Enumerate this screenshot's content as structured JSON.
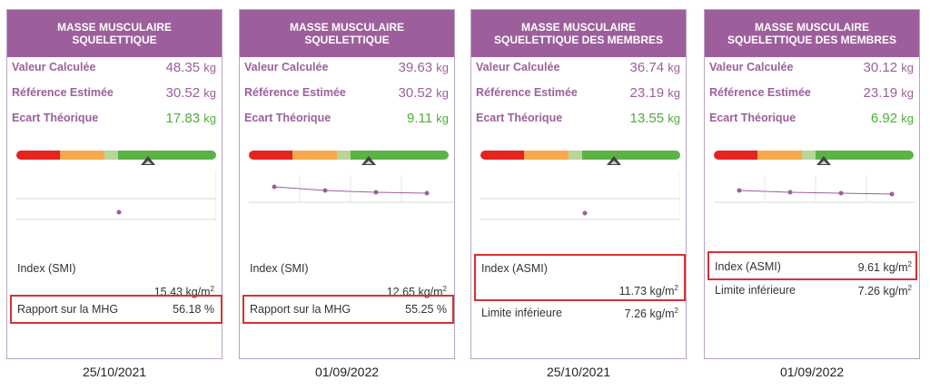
{
  "colors": {
    "header": "#9d5e9c",
    "label": "#9d5e9c",
    "positive": "#4cae3a",
    "gauge": [
      "#e52420",
      "#f6a94c",
      "#b8d59a",
      "#5cb246"
    ],
    "highlight_box": "#d93030"
  },
  "cards": [
    {
      "title_line1": "MASSE MUSCULAIRE",
      "title_line2": "SQUELETTIQUE",
      "valeur_label": "Valeur Calculée",
      "valeur_value": "48.35",
      "valeur_unit": "kg",
      "reference_label": "Référence Estimée",
      "reference_value": "30.52",
      "reference_unit": "kg",
      "ecart_label": "Ecart Théorique",
      "ecart_value": "17.83",
      "ecart_unit": "kg",
      "gauge_marker_fraction": 0.66,
      "index_label": "Index (SMI)",
      "index_value": "15.43 kg/m",
      "index_exp": "2",
      "ratio_label": "Rapport sur la MHG",
      "ratio_value": "56.18 %",
      "date": "25/10/2021"
    },
    {
      "title_line1": "MASSE MUSCULAIRE",
      "title_line2": "SQUELETTIQUE",
      "valeur_label": "Valeur Calculée",
      "valeur_value": "39.63",
      "valeur_unit": "kg",
      "reference_label": "Référence Estimée",
      "reference_value": "30.52",
      "reference_unit": "kg",
      "ecart_label": "Ecart Théorique",
      "ecart_value": "9.11",
      "ecart_unit": "kg",
      "gauge_marker_fraction": 0.6,
      "index_label": "Index (SMI)",
      "index_value": "12.65 kg/m",
      "index_exp": "2",
      "ratio_label": "Rapport sur la MHG",
      "ratio_value": "55.25 %",
      "date": "01/09/2022"
    },
    {
      "title_line1": "MASSE MUSCULAIRE",
      "title_line2": "SQUELETTIQUE DES MEMBRES",
      "valeur_label": "Valeur Calculée",
      "valeur_value": "36.74",
      "valeur_unit": "kg",
      "reference_label": "Référence Estimée",
      "reference_value": "23.19",
      "reference_unit": "kg",
      "ecart_label": "Ecart Théorique",
      "ecart_value": "13.55",
      "ecart_unit": "kg",
      "gauge_marker_fraction": 0.67,
      "index_label": "Index (ASMI)",
      "index_value": "11.73 kg/m",
      "index_exp": "2",
      "limit_label": "Limite inférieure",
      "limit_value": "7.26 kg/m",
      "limit_exp": "2",
      "date": "25/10/2021"
    },
    {
      "title_line1": "MASSE MUSCULAIRE",
      "title_line2": "SQUELETTIQUE DES MEMBRES",
      "valeur_label": "Valeur Calculée",
      "valeur_value": "30.12",
      "valeur_unit": "kg",
      "reference_label": "Référence Estimée",
      "reference_value": "23.19",
      "reference_unit": "kg",
      "ecart_label": "Ecart Théorique",
      "ecart_value": "6.92",
      "ecart_unit": "kg",
      "gauge_marker_fraction": 0.55,
      "index_label": "Index (ASMI)",
      "index_value": "9.61 kg/m",
      "index_exp": "2",
      "limit_label": "Limite inférieure",
      "limit_value": "7.26 kg/m",
      "limit_exp": "2",
      "date": "01/09/2022"
    }
  ]
}
